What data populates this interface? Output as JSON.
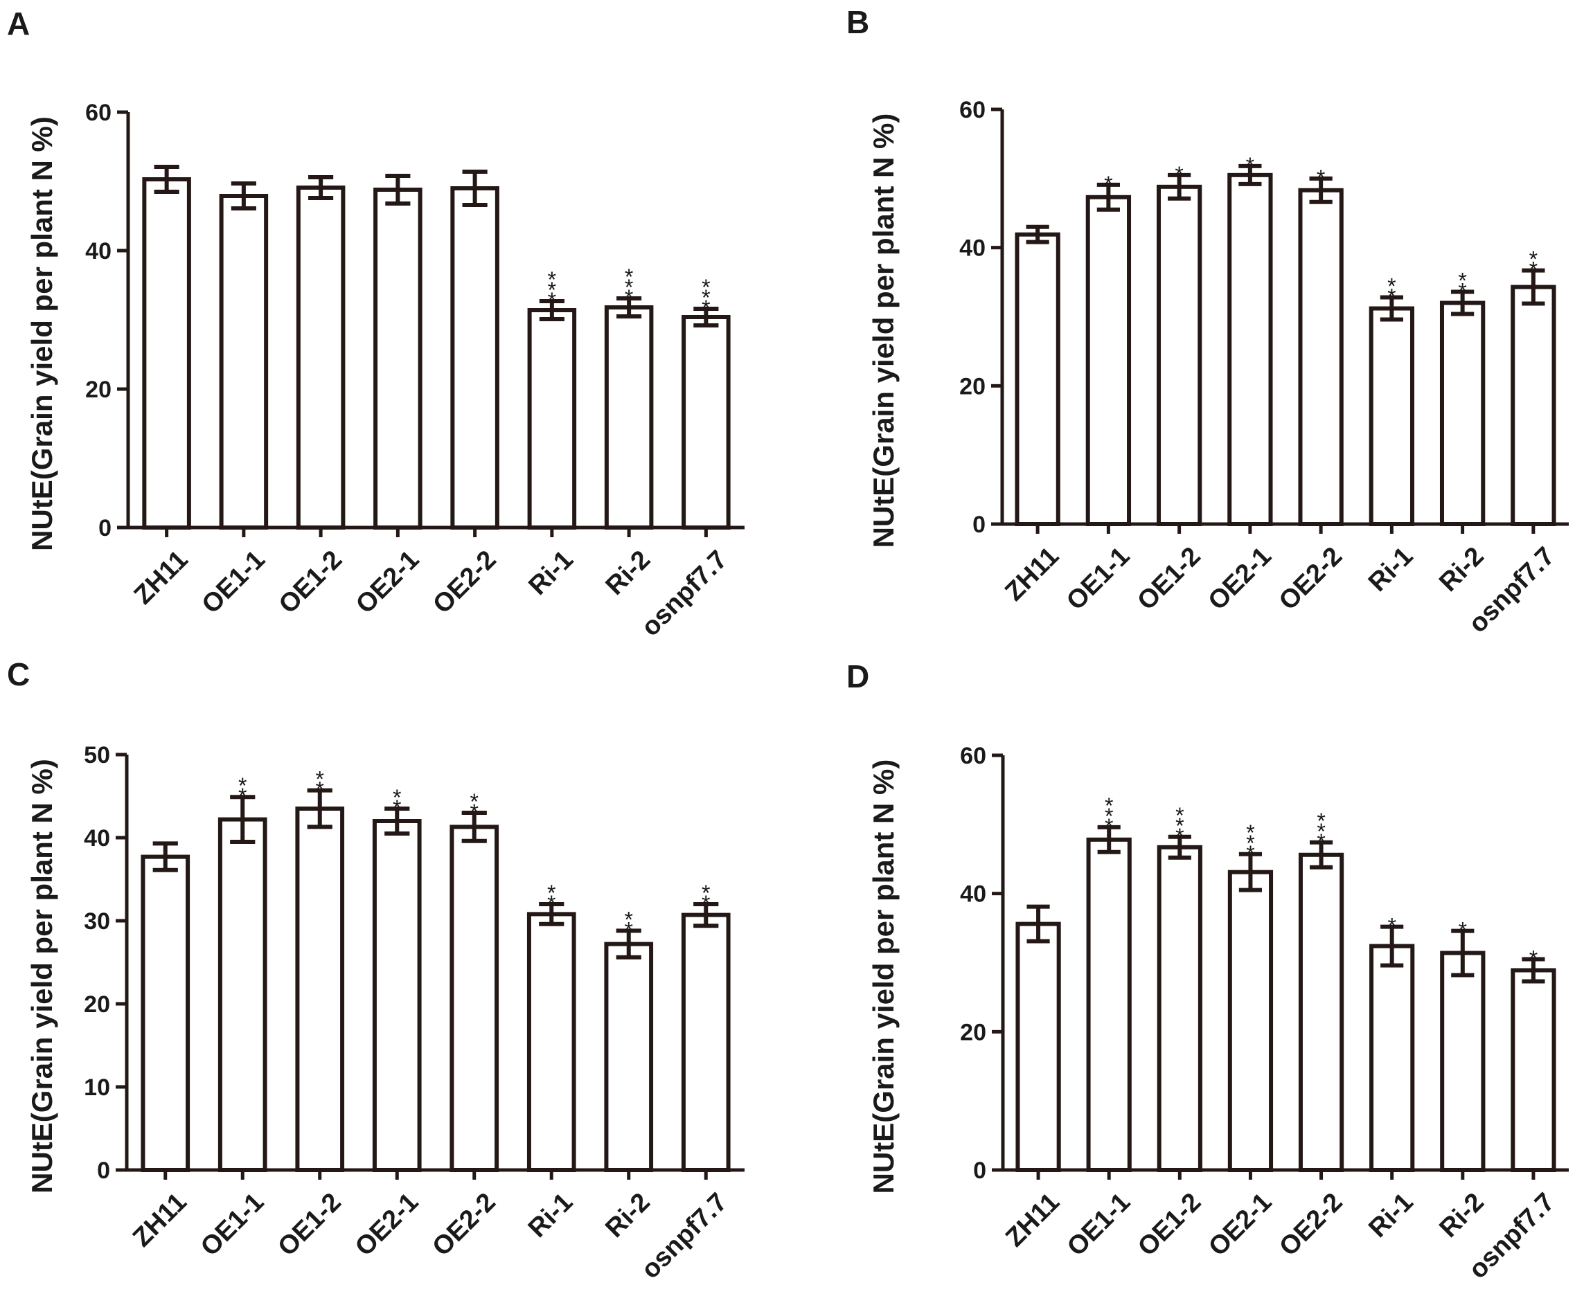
{
  "chart_data": [
    {
      "panel": "A",
      "type": "bar",
      "ylabel": "NUtE(Grain yield per plant N %)",
      "ylim": [
        0,
        60
      ],
      "yticks": [
        0,
        20,
        40,
        60
      ],
      "categories": [
        "ZH11",
        "OE1-1",
        "OE1-2",
        "OE2-1",
        "OE2-2",
        "Ri-1",
        "Ri-2",
        "osnpf7.7"
      ],
      "values": [
        50.3,
        47.9,
        49.1,
        48.8,
        49.0,
        31.4,
        31.8,
        30.4
      ],
      "errors": [
        1.8,
        1.8,
        1.5,
        2.0,
        2.4,
        1.3,
        1.3,
        1.2
      ],
      "significance": [
        "",
        "",
        "",
        "",
        "",
        "***",
        "***",
        "***"
      ]
    },
    {
      "panel": "B",
      "type": "bar",
      "ylabel": "NUtE(Grain yield per plant N %)",
      "ylim": [
        0,
        60
      ],
      "yticks": [
        0,
        20,
        40,
        60
      ],
      "categories": [
        "ZH11",
        "OE1-1",
        "OE1-2",
        "OE2-1",
        "OE2-2",
        "Ri-1",
        "Ri-2",
        "osnpf7.7"
      ],
      "values": [
        41.9,
        47.3,
        48.8,
        50.5,
        48.3,
        31.2,
        32.0,
        34.3
      ],
      "errors": [
        1.1,
        1.8,
        1.7,
        1.3,
        1.7,
        1.6,
        1.6,
        2.4
      ],
      "significance": [
        "",
        "*",
        "*",
        "*",
        "*",
        "**",
        "**",
        "**"
      ]
    },
    {
      "panel": "C",
      "type": "bar",
      "ylabel": "NUtE(Grain yield per plant N %)",
      "ylim": [
        0,
        50
      ],
      "yticks": [
        0,
        10,
        20,
        30,
        40,
        50
      ],
      "categories": [
        "ZH11",
        "OE1-1",
        "OE1-2",
        "OE2-1",
        "OE2-2",
        "Ri-1",
        "Ri-2",
        "osnpf7.7"
      ],
      "values": [
        37.7,
        42.2,
        43.5,
        42.0,
        41.3,
        30.8,
        27.2,
        30.7
      ],
      "errors": [
        1.6,
        2.7,
        2.2,
        1.5,
        1.7,
        1.2,
        1.6,
        1.3
      ],
      "significance": [
        "",
        "**",
        "**",
        "**",
        "**",
        "**",
        "**",
        "**"
      ]
    },
    {
      "panel": "D",
      "type": "bar",
      "ylabel": "NUtE(Grain yield per plant N %)",
      "ylim": [
        0,
        60
      ],
      "yticks": [
        0,
        20,
        40,
        60
      ],
      "categories": [
        "ZH11",
        "OE1-1",
        "OE1-2",
        "OE2-1",
        "OE2-2",
        "Ri-1",
        "Ri-2",
        "osnpf7.7"
      ],
      "values": [
        35.6,
        47.8,
        46.7,
        43.1,
        45.6,
        32.4,
        31.4,
        28.9
      ],
      "errors": [
        2.5,
        1.8,
        1.5,
        2.6,
        1.8,
        2.8,
        3.2,
        1.6
      ],
      "significance": [
        "",
        "***",
        "***",
        "***",
        "***",
        "*",
        "*",
        "*"
      ]
    }
  ]
}
